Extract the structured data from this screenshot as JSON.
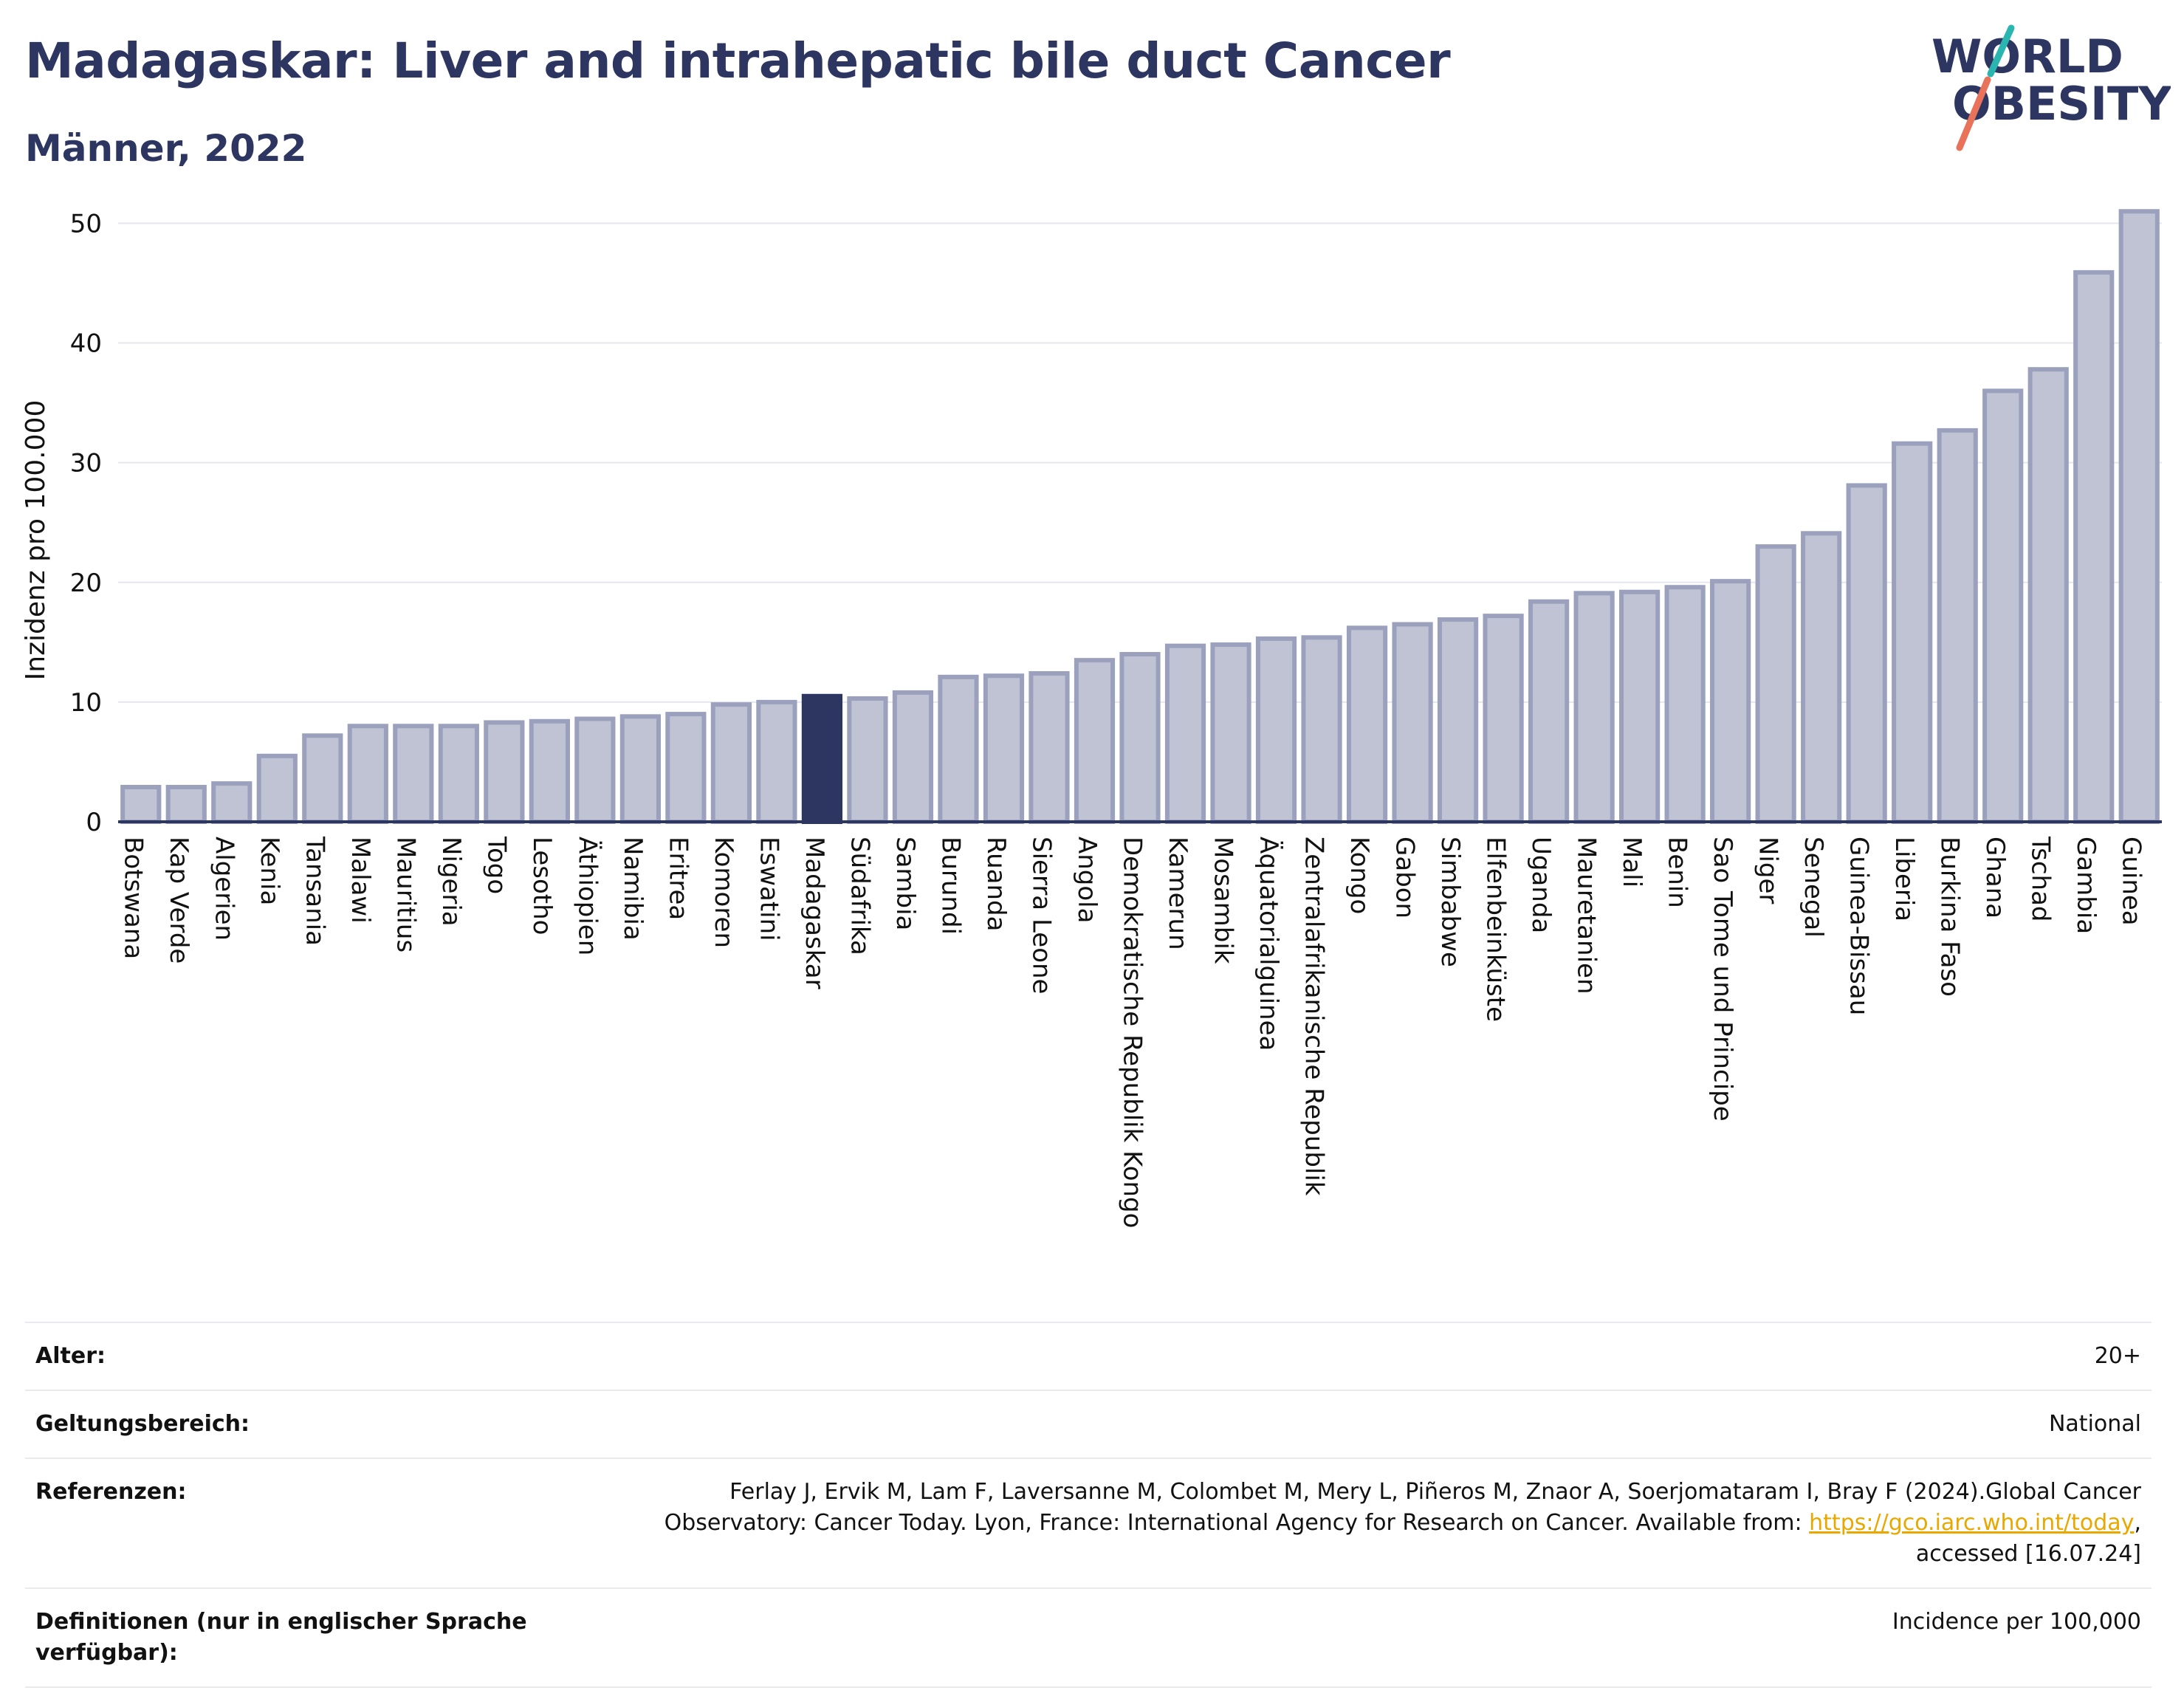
{
  "header": {
    "title": "Madagaskar: Liver and intrahepatic bile duct Cancer",
    "subtitle": "Männer, 2022"
  },
  "logo": {
    "line1": "WORLD",
    "line2": "OBESITY"
  },
  "chart_data": {
    "type": "bar",
    "ylabel": "Inzidenz pro 100.000",
    "ylim": [
      0,
      52
    ],
    "yticks": [
      0,
      10,
      20,
      30,
      40,
      50
    ],
    "grid": true,
    "highlight": "Madagaskar",
    "colors": {
      "bar": "#bfc3d3",
      "bar_edge": "#9ba1bd",
      "highlight": "#2d3561",
      "axis": "#2d3561",
      "grid": "#e6e7ee"
    },
    "categories": [
      "Botswana",
      "Kap Verde",
      "Algerien",
      "Kenia",
      "Tansania",
      "Malawi",
      "Mauritius",
      "Nigeria",
      "Togo",
      "Lesotho",
      "Äthiopien",
      "Namibia",
      "Eritrea",
      "Komoren",
      "Eswatini",
      "Madagaskar",
      "Südafrika",
      "Sambia",
      "Burundi",
      "Ruanda",
      "Sierra Leone",
      "Angola",
      "Demokratische Republik Kongo",
      "Kamerun",
      "Mosambik",
      "Äquatorialguinea",
      "Zentralafrikanische Republik",
      "Kongo",
      "Gabon",
      "Simbabwe",
      "Elfenbeinküste",
      "Uganda",
      "Mauretanien",
      "Mali",
      "Benin",
      "Sao Tome und Principe",
      "Niger",
      "Senegal",
      "Guinea-Bissau",
      "Liberia",
      "Burkina Faso",
      "Ghana",
      "Tschad",
      "Gambia",
      "Guinea"
    ],
    "values": [
      2.9,
      2.9,
      3.2,
      5.5,
      7.2,
      8.0,
      8.0,
      8.0,
      8.3,
      8.4,
      8.6,
      8.8,
      9.0,
      9.8,
      10.0,
      10.5,
      10.3,
      10.8,
      12.1,
      12.2,
      12.4,
      13.5,
      14.0,
      14.7,
      14.8,
      15.3,
      15.4,
      16.2,
      16.5,
      16.9,
      17.2,
      18.4,
      19.1,
      19.2,
      19.6,
      20.1,
      23.0,
      24.1,
      28.1,
      31.6,
      32.7,
      36.0,
      37.8,
      45.9,
      51.0
    ]
  },
  "metadata": {
    "rows": [
      {
        "label": "Alter:",
        "value": "20+"
      },
      {
        "label": "Geltungsbereich:",
        "value": "National"
      },
      {
        "label": "Referenzen:",
        "value_before": "Ferlay J, Ervik M, Lam F, Laversanne M, Colombet M, Mery L, Piñeros M, Znaor A, Soerjomataram I, Bray F (2024).Global Cancer Observatory: Cancer Today. Lyon, France: International Agency for Research on Cancer. Available from: ",
        "link": "https://gco.iarc.who.int/today",
        "value_after": ", accessed [16.07.24]"
      },
      {
        "label": "Definitionen (nur in englischer Sprache verfügbar):",
        "value": "Incidence per 100,000"
      }
    ]
  }
}
